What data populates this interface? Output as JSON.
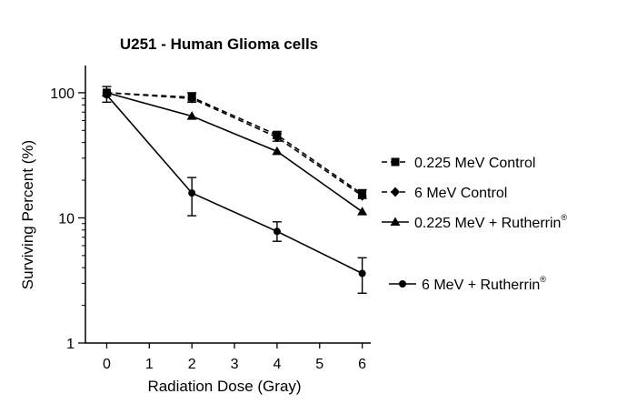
{
  "chart_data": {
    "type": "line",
    "title": "U251 - Human Glioma cells",
    "xlabel": "Radiation Dose (Gray)",
    "ylabel": "Surviving Percent (%)",
    "y_scale": "log",
    "xlim": [
      -0.5,
      6.2
    ],
    "ylim": [
      1,
      165
    ],
    "x_ticks": [
      0,
      1,
      2,
      3,
      4,
      5,
      6
    ],
    "x_tick_labels": [
      "0",
      "1",
      "2",
      "3",
      "4",
      "5",
      "6"
    ],
    "y_ticks": [
      1,
      10,
      100
    ],
    "y_tick_labels": [
      "1",
      "10",
      "100"
    ],
    "grid": false,
    "legend_position": "right",
    "series": [
      {
        "name": "0.225 MeV Control",
        "name_superscript": "",
        "marker": "square",
        "line_style": "dashed",
        "x": [
          0,
          2,
          4,
          6
        ],
        "y": [
          100,
          92,
          46,
          15.5
        ],
        "err_low": [
          null,
          84,
          43,
          14.3
        ],
        "err_high": [
          null,
          100,
          49,
          16.8
        ]
      },
      {
        "name": "6 MeV Control",
        "name_superscript": "",
        "marker": "diamond",
        "line_style": "dashed",
        "x": [
          0,
          2,
          4,
          6
        ],
        "y": [
          100,
          90,
          44,
          15
        ],
        "err_low": [
          null,
          null,
          41,
          null
        ],
        "err_high": [
          null,
          null,
          47,
          null
        ]
      },
      {
        "name": "0.225 MeV + Rutherrin",
        "name_superscript": "®",
        "marker": "triangle",
        "line_style": "solid",
        "x": [
          0,
          2,
          4,
          6
        ],
        "y": [
          100,
          65,
          34,
          11.2
        ],
        "err_low": [
          null,
          null,
          null,
          null
        ],
        "err_high": [
          null,
          null,
          null,
          null
        ]
      },
      {
        "name": "6 MeV + Rutherrin",
        "name_superscript": "®",
        "marker": "circle",
        "line_style": "solid",
        "x": [
          0,
          2,
          4,
          6
        ],
        "y": [
          96,
          15.8,
          7.8,
          3.6
        ],
        "err_low": [
          84,
          10.4,
          6.5,
          2.5
        ],
        "err_high": [
          112,
          21,
          9.3,
          4.8
        ]
      }
    ]
  }
}
